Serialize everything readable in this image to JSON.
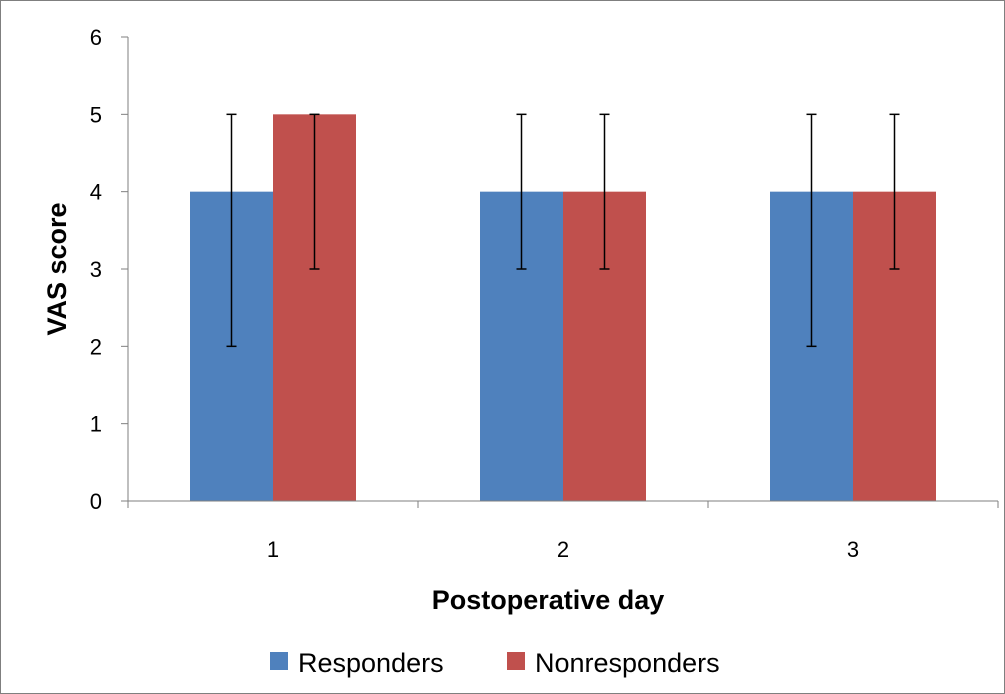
{
  "chart_data": {
    "type": "bar",
    "title": "",
    "xlabel": "Postoperative day",
    "ylabel": "VAS score",
    "categories": [
      "1",
      "2",
      "3"
    ],
    "ylim": [
      0,
      6
    ],
    "yticks": [
      "0",
      "1",
      "2",
      "3",
      "4",
      "5",
      "6"
    ],
    "grid": false,
    "legend_position": "bottom",
    "series": [
      {
        "name": "Responders",
        "color": "#4f81bd",
        "values": [
          4,
          4,
          4
        ],
        "error_low": [
          2,
          3,
          2
        ],
        "error_high": [
          5,
          5,
          5
        ]
      },
      {
        "name": "Nonresponders",
        "color": "#c0504d",
        "values": [
          5,
          4,
          4
        ],
        "error_low": [
          3,
          3,
          3
        ],
        "error_high": [
          5,
          5,
          5
        ]
      }
    ]
  }
}
